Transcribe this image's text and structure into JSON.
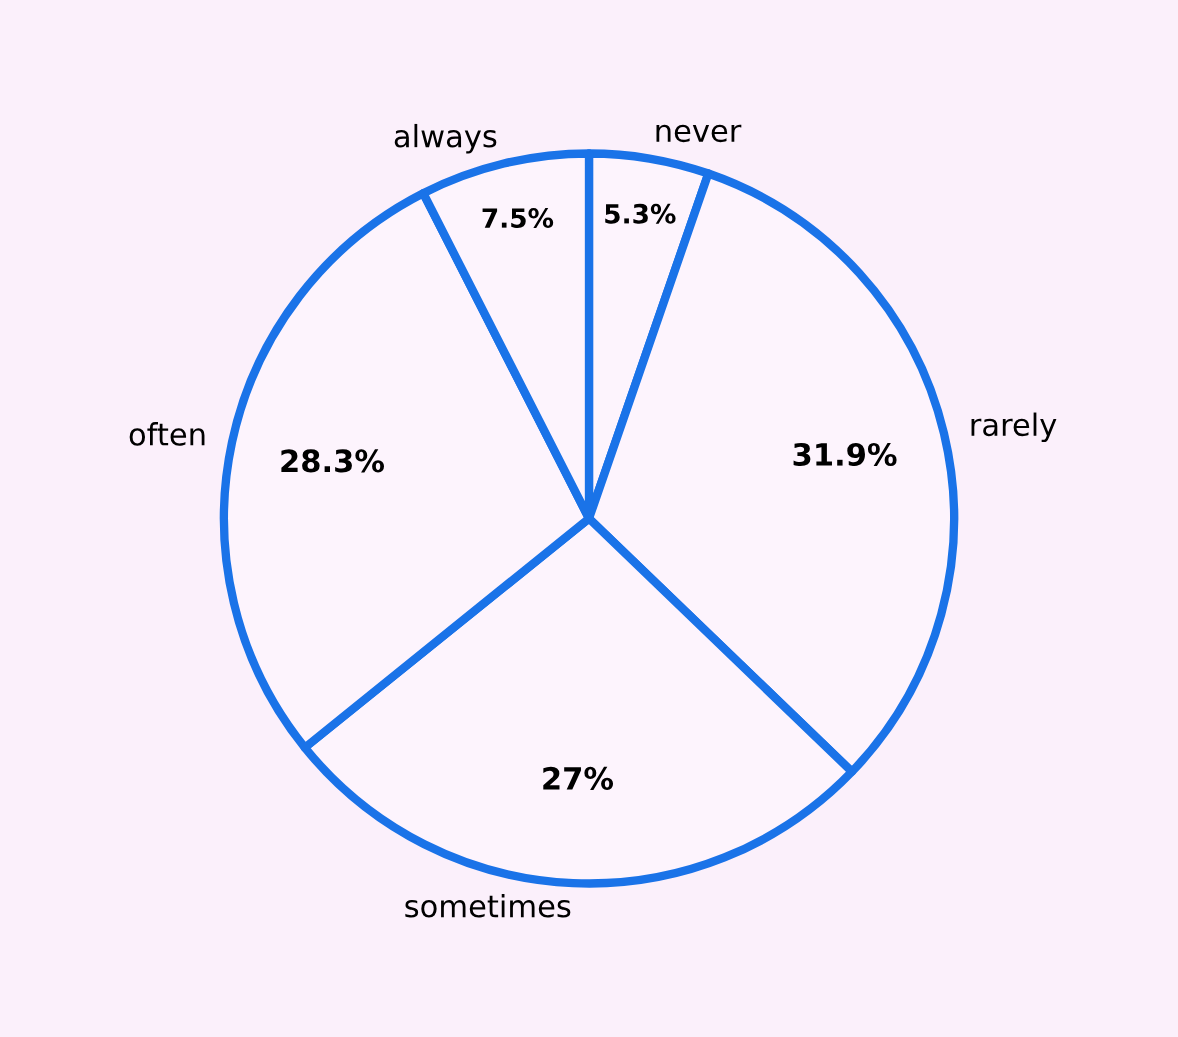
{
  "chart_data": {
    "type": "pie",
    "categories": [
      "never",
      "rarely",
      "sometimes",
      "often",
      "always"
    ],
    "values": [
      5.3,
      31.9,
      27,
      28.3,
      7.5
    ],
    "value_labels": [
      "5.3%",
      "31.9%",
      "27%",
      "28.3%",
      "7.5%"
    ],
    "colors": [
      "#1a73e8",
      "#1a73e8",
      "#1a73e8",
      "#1a73e8",
      "#1a73e8"
    ],
    "legend": false
  }
}
